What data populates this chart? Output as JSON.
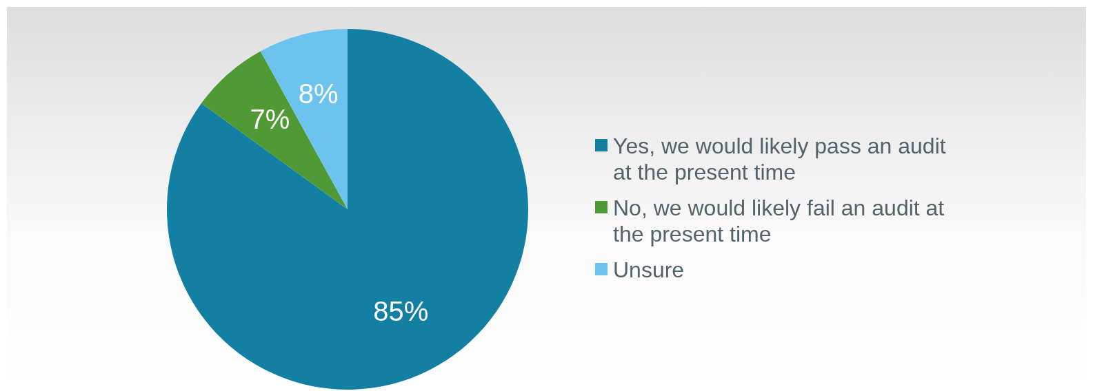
{
  "chart_data": {
    "type": "pie",
    "categories": [
      "Yes, we would likely pass an audit at the present time",
      "No, we would likely fail an audit at the present time",
      "Unsure"
    ],
    "values": [
      85,
      7,
      8
    ],
    "colors": [
      "#137fa3",
      "#4f9a34",
      "#6cc3ee"
    ],
    "value_labels": [
      "85%",
      "7%",
      "8%"
    ],
    "legend": "right"
  }
}
